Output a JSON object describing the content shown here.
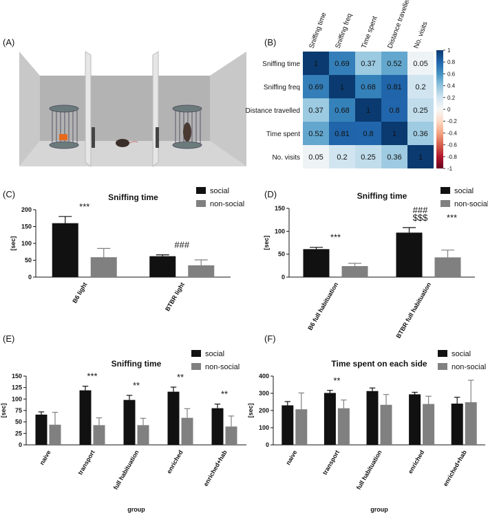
{
  "panel_labels": [
    "(A)",
    "(B)",
    "(C)",
    "(D)",
    "(E)",
    "(F)"
  ],
  "chart_data": [
    {
      "type": "heatmap",
      "x": [
        "Sniffing time",
        "Sniffing freq",
        "Time spent",
        "Distance travelled",
        "No. visits"
      ],
      "y": [
        "Sniffing time",
        "Sniffing freq",
        "Distance travelled",
        "Time spent",
        "No. visits"
      ],
      "values": [
        [
          1,
          0.69,
          0.37,
          0.52,
          0.05
        ],
        [
          0.69,
          1,
          0.68,
          0.81,
          0.2
        ],
        [
          0.37,
          0.68,
          1,
          0.8,
          0.25
        ],
        [
          0.52,
          0.81,
          0.8,
          1,
          0.36
        ],
        [
          0.05,
          0.2,
          0.25,
          0.36,
          1
        ]
      ],
      "clim": [
        -1,
        1
      ],
      "cticks": [
        1,
        0.8,
        0.6,
        0.4,
        0.2,
        0,
        -0.2,
        -0.4,
        -0.6,
        -0.8,
        -1
      ],
      "colormap": [
        "#67001f",
        "#b2182b",
        "#d6604d",
        "#f4a582",
        "#fddbc7",
        "#f7f7f7",
        "#d1e5f0",
        "#92c5de",
        "#4393c3",
        "#2166ac",
        "#0a3a70"
      ]
    },
    {
      "type": "bar",
      "title": "Sniffing time",
      "ylabel": "[sec]",
      "categories": [
        "B6 light",
        "BTBR light"
      ],
      "series": [
        {
          "name": "social",
          "color": "#111111",
          "values": [
            160,
            62
          ],
          "errors": [
            20,
            4
          ]
        },
        {
          "name": "non-social",
          "color": "#808080",
          "values": [
            59,
            35
          ],
          "errors": [
            26,
            16
          ]
        }
      ],
      "annotations": [
        [
          "***"
        ],
        [
          "###"
        ]
      ],
      "ylim": [
        0,
        200
      ],
      "yticks": [
        0,
        50,
        100,
        150,
        200
      ]
    },
    {
      "type": "bar",
      "title": "Sniffing time",
      "ylabel": "[sec]",
      "categories": [
        "B6 full habituation",
        "BTBR full habituation"
      ],
      "series": [
        {
          "name": "social",
          "color": "#111111",
          "values": [
            61,
            97
          ],
          "errors": [
            4,
            11
          ]
        },
        {
          "name": "non-social",
          "color": "#808080",
          "values": [
            24,
            43
          ],
          "errors": [
            6,
            16
          ]
        }
      ],
      "annotations": [
        [
          "***"
        ],
        [
          "###",
          "$$$",
          "***"
        ]
      ],
      "ylim": [
        0,
        150
      ],
      "yticks": [
        0,
        50,
        100,
        150
      ]
    },
    {
      "type": "bar",
      "title": "Sniffing time",
      "ylabel": "[sec]",
      "xlabel": "group",
      "categories": [
        "naive",
        "transport",
        "full habituation",
        "enriched",
        "enriched+hab"
      ],
      "series": [
        {
          "name": "social",
          "color": "#111111",
          "values": [
            66,
            119,
            98,
            116,
            80
          ],
          "errors": [
            6,
            9,
            10,
            10,
            9
          ]
        },
        {
          "name": "non-social",
          "color": "#808080",
          "values": [
            44,
            43,
            43,
            59,
            40
          ],
          "errors": [
            27,
            16,
            15,
            20,
            23
          ]
        }
      ],
      "annotations": [
        [],
        [
          "***"
        ],
        [
          "**"
        ],
        [
          "**"
        ],
        [
          "**"
        ]
      ],
      "ylim": [
        0,
        150
      ],
      "yticks": [
        0,
        25,
        50,
        75,
        100,
        125,
        150
      ]
    },
    {
      "type": "bar",
      "title": "Time spent on each side",
      "ylabel": "[sec]",
      "xlabel": "group",
      "categories": [
        "naive",
        "transport",
        "full habituation",
        "enriched",
        "enriched+hab"
      ],
      "series": [
        {
          "name": "social",
          "color": "#111111",
          "values": [
            230,
            302,
            313,
            294,
            240
          ],
          "errors": [
            22,
            15,
            18,
            12,
            37
          ]
        },
        {
          "name": "non-social",
          "color": "#808080",
          "values": [
            207,
            213,
            233,
            238,
            248
          ],
          "errors": [
            95,
            48,
            60,
            45,
            128
          ]
        }
      ],
      "annotations": [
        [],
        [
          "**"
        ],
        [],
        [],
        []
      ],
      "ylim": [
        0,
        400
      ],
      "yticks": [
        0,
        100,
        200,
        300,
        400
      ]
    }
  ]
}
